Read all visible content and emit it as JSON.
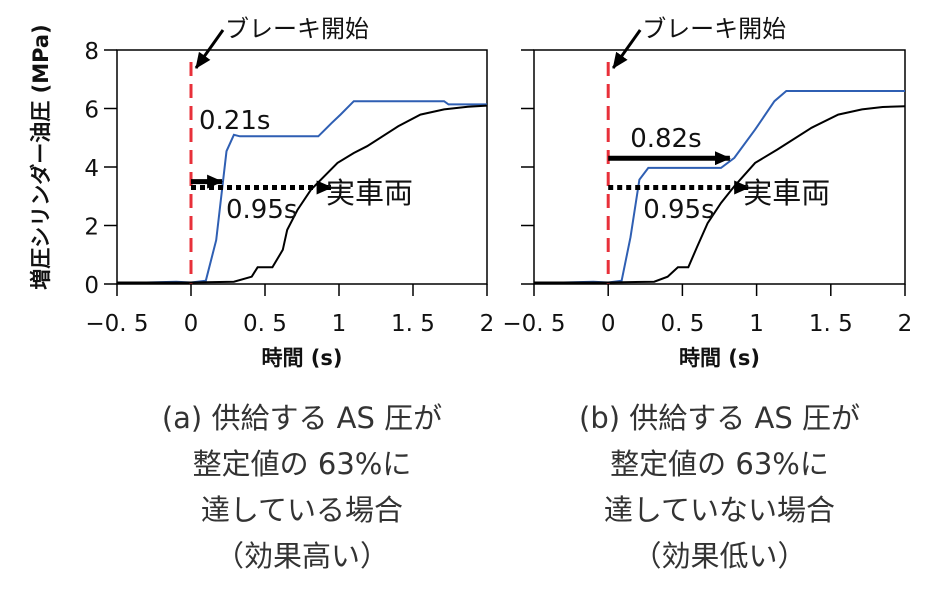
{
  "chart_data": [
    {
      "type": "line",
      "panel": "a",
      "xlabel": "時間 (s)",
      "ylabel": "増圧シリンダー油圧 (MPa)",
      "xlim": [
        -0.5,
        2
      ],
      "ylim": [
        0,
        8
      ],
      "xticks": [
        -0.5,
        0,
        0.5,
        1,
        1.5,
        2
      ],
      "xtick_labels": [
        "−0. 5",
        "0",
        "0. 5",
        "1",
        "1. 5",
        "2"
      ],
      "yticks": [
        0,
        2,
        4,
        6,
        8
      ],
      "ytick_labels": [
        "0",
        "2",
        "4",
        "6",
        "8"
      ],
      "grid": false,
      "series": [
        {
          "name": "供給するAS圧",
          "color": "#2f5fb3",
          "x": [
            -0.5,
            -0.3,
            -0.1,
            0,
            0.1,
            0.17,
            0.24,
            0.29,
            0.33,
            0.86,
            0.95,
            1.01,
            1.1,
            1.71,
            1.74,
            2.0
          ],
          "y": [
            0.05,
            0.05,
            0.08,
            0.05,
            0.11,
            1.5,
            4.54,
            5.1,
            5.05,
            5.05,
            5.5,
            5.79,
            6.25,
            6.25,
            6.14,
            6.14
          ]
        },
        {
          "name": "実車両",
          "color": "#000000",
          "x": [
            -0.5,
            0,
            0.29,
            0.41,
            0.45,
            0.55,
            0.62,
            0.65,
            0.72,
            0.81,
            0.99,
            1.1,
            1.19,
            1.4,
            1.55,
            1.71,
            1.87,
            2.0
          ],
          "y": [
            0.05,
            0.05,
            0.08,
            0.25,
            0.57,
            0.57,
            1.17,
            1.85,
            2.54,
            3.22,
            4.14,
            4.48,
            4.71,
            5.39,
            5.79,
            5.97,
            6.06,
            6.1
          ]
        }
      ],
      "brake_start_x": 0,
      "annotations": {
        "brake_label": "ブレーキ開始",
        "arrow_solid": {
          "y": 3.5,
          "x_end": 0.21,
          "label": "0.21s"
        },
        "arrow_dotted": {
          "y": 3.3,
          "x_end": 0.95,
          "label": "0.95s"
        },
        "vehicle_label": "実車両"
      },
      "caption": [
        "(a) 供給する AS 圧が",
        "整定値の 63%に",
        "達している場合",
        "（効果高い）"
      ]
    },
    {
      "type": "line",
      "panel": "b",
      "xlabel": "時間 (s)",
      "xlim": [
        -0.5,
        2
      ],
      "ylim": [
        0,
        8
      ],
      "xticks": [
        -0.5,
        0,
        0.5,
        1,
        1.5,
        2
      ],
      "xtick_labels": [
        "−0. 5",
        "0",
        "0. 5",
        "1",
        "1. 5",
        "2"
      ],
      "grid": false,
      "series": [
        {
          "name": "供給するAS圧",
          "color": "#2f5fb3",
          "x": [
            -0.5,
            -0.3,
            -0.1,
            0,
            0.09,
            0.15,
            0.21,
            0.27,
            0.76,
            0.85,
            0.99,
            1.12,
            1.2,
            2.0
          ],
          "y": [
            0.05,
            0.05,
            0.08,
            0.05,
            0.11,
            1.6,
            3.57,
            3.97,
            3.97,
            4.31,
            5.28,
            6.25,
            6.6,
            6.6
          ]
        },
        {
          "name": "実車両",
          "color": "#000000",
          "x": [
            -0.5,
            0,
            0.31,
            0.4,
            0.47,
            0.54,
            0.6,
            0.67,
            0.76,
            0.85,
            0.99,
            1.14,
            1.37,
            1.55,
            1.71,
            1.85,
            2.0
          ],
          "y": [
            0.05,
            0.05,
            0.08,
            0.25,
            0.57,
            0.57,
            1.28,
            2.08,
            2.77,
            3.34,
            4.14,
            4.6,
            5.34,
            5.79,
            5.97,
            6.05,
            6.08
          ]
        }
      ],
      "brake_start_x": 0,
      "annotations": {
        "brake_label": "ブレーキ開始",
        "arrow_solid": {
          "y": 4.3,
          "x_end": 0.82,
          "label": "0.82s"
        },
        "arrow_dotted": {
          "y": 3.3,
          "x_end": 0.95,
          "label": "0.95s"
        },
        "vehicle_label": "実車両"
      },
      "caption": [
        "(b) 供給する AS 圧が",
        "整定値の 63%に",
        "達していない場合",
        "（効果低い）"
      ]
    }
  ]
}
